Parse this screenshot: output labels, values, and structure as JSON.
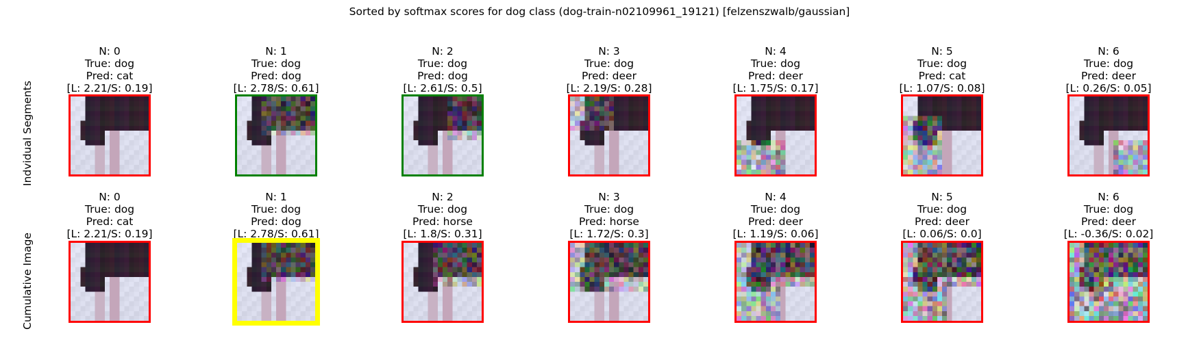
{
  "title": "Sorted by softmax scores for dog class (dog-train-n02109961_19121) [felzenszwalb/gaussian]",
  "colors": {
    "correct": "#008000",
    "wrong": "#ff0000",
    "highlight": "#ffff00"
  },
  "chart_data": {
    "type": "image_grid",
    "row_labels": [
      "Indvidual Segments",
      "Cumulative Image"
    ],
    "rows": [
      {
        "name": "Indvidual Segments",
        "panels": [
          {
            "n": "N: 0",
            "true": "True: dog",
            "pred": "Pred: cat",
            "scores": "[L: 2.21/S: 0.19]",
            "border": "wrong",
            "noise": 0.05,
            "noise_region": "none"
          },
          {
            "n": "N: 1",
            "true": "True: dog",
            "pred": "Pred: dog",
            "scores": "[L: 2.78/S: 0.61]",
            "border": "correct",
            "noise": 0.35,
            "noise_region": "top"
          },
          {
            "n": "N: 2",
            "true": "True: dog",
            "pred": "Pred: dog",
            "scores": "[L: 2.61/S: 0.5]",
            "border": "correct",
            "noise": 0.35,
            "noise_region": "right"
          },
          {
            "n": "N: 3",
            "true": "True: dog",
            "pred": "Pred: deer",
            "scores": "[L: 2.19/S: 0.28]",
            "border": "wrong",
            "noise": 0.35,
            "noise_region": "topleft"
          },
          {
            "n": "N: 4",
            "true": "True: dog",
            "pred": "Pred: deer",
            "scores": "[L: 1.75/S: 0.17]",
            "border": "wrong",
            "noise": 0.45,
            "noise_region": "bottom"
          },
          {
            "n": "N: 5",
            "true": "True: dog",
            "pred": "Pred: cat",
            "scores": "[L: 1.07/S: 0.08]",
            "border": "wrong",
            "noise": 0.45,
            "noise_region": "left"
          },
          {
            "n": "N: 6",
            "true": "True: dog",
            "pred": "Pred: deer",
            "scores": "[L: 0.26/S: 0.05]",
            "border": "wrong",
            "noise": 0.45,
            "noise_region": "bottomright"
          }
        ]
      },
      {
        "name": "Cumulative Image",
        "panels": [
          {
            "n": "N: 0",
            "true": "True: dog",
            "pred": "Pred: cat",
            "scores": "[L: 2.21/S: 0.19]",
            "border": "wrong",
            "noise": 0.05,
            "noise_region": "none"
          },
          {
            "n": "N: 1",
            "true": "True: dog",
            "pred": "Pred: dog",
            "scores": "[L: 2.78/S: 0.61]",
            "border": "highlight",
            "noise": 0.35,
            "noise_region": "top"
          },
          {
            "n": "N: 2",
            "true": "True: dog",
            "pred": "Pred: horse",
            "scores": "[L: 1.8/S: 0.31]",
            "border": "wrong",
            "noise": 0.4,
            "noise_region": "topright"
          },
          {
            "n": "N: 3",
            "true": "True: dog",
            "pred": "Pred: horse",
            "scores": "[L: 1.72/S: 0.3]",
            "border": "wrong",
            "noise": 0.4,
            "noise_region": "topall"
          },
          {
            "n": "N: 4",
            "true": "True: dog",
            "pred": "Pred: deer",
            "scores": "[L: 1.19/S: 0.06]",
            "border": "wrong",
            "noise": 0.45,
            "noise_region": "most"
          },
          {
            "n": "N: 5",
            "true": "True: dog",
            "pred": "Pred: deer",
            "scores": "[L: 0.06/S: 0.0]",
            "border": "wrong",
            "noise": 0.5,
            "noise_region": "most"
          },
          {
            "n": "N: 6",
            "true": "True: dog",
            "pred": "Pred: deer",
            "scores": "[L: -0.36/S: 0.02]",
            "border": "wrong",
            "noise": 0.55,
            "noise_region": "all"
          }
        ]
      }
    ]
  }
}
